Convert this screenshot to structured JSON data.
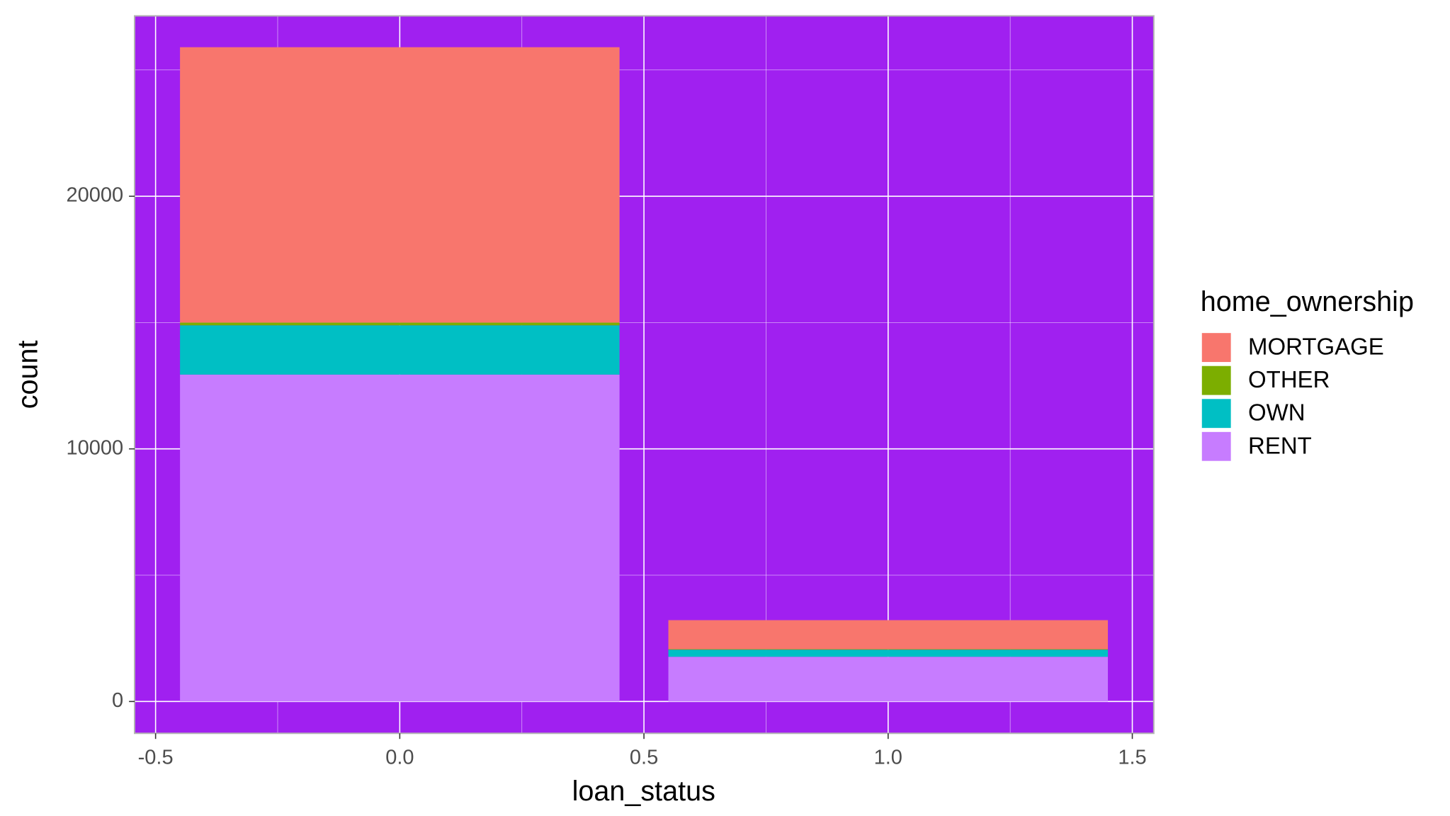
{
  "chart_data": {
    "type": "bar",
    "stacked": true,
    "x_label": "loan_status",
    "y_label": "count",
    "legend_title": "home_ownership",
    "x": [
      0,
      1
    ],
    "series": [
      {
        "name": "MORTGAGE",
        "color": "#f8766d",
        "values": [
          10900,
          1150
        ]
      },
      {
        "name": "OTHER",
        "color": "#7cae00",
        "values": [
          110,
          20
        ]
      },
      {
        "name": "OWN",
        "color": "#00bfc4",
        "values": [
          1950,
          280
        ]
      },
      {
        "name": "RENT",
        "color": "#c77cff",
        "values": [
          12940,
          1770
        ]
      }
    ],
    "xlim": [
      -0.543,
      1.544
    ],
    "xticks": [
      -0.5,
      {
        "value": 0,
        "label": "0.0"
      },
      0.5,
      {
        "value": 1,
        "label": "1.0"
      },
      1.5
    ],
    "ylim": [
      -1260,
      27140
    ],
    "yticks": [
      0,
      10000,
      20000
    ],
    "grid": true,
    "panel_color": "#a020f0",
    "legend": "right"
  }
}
